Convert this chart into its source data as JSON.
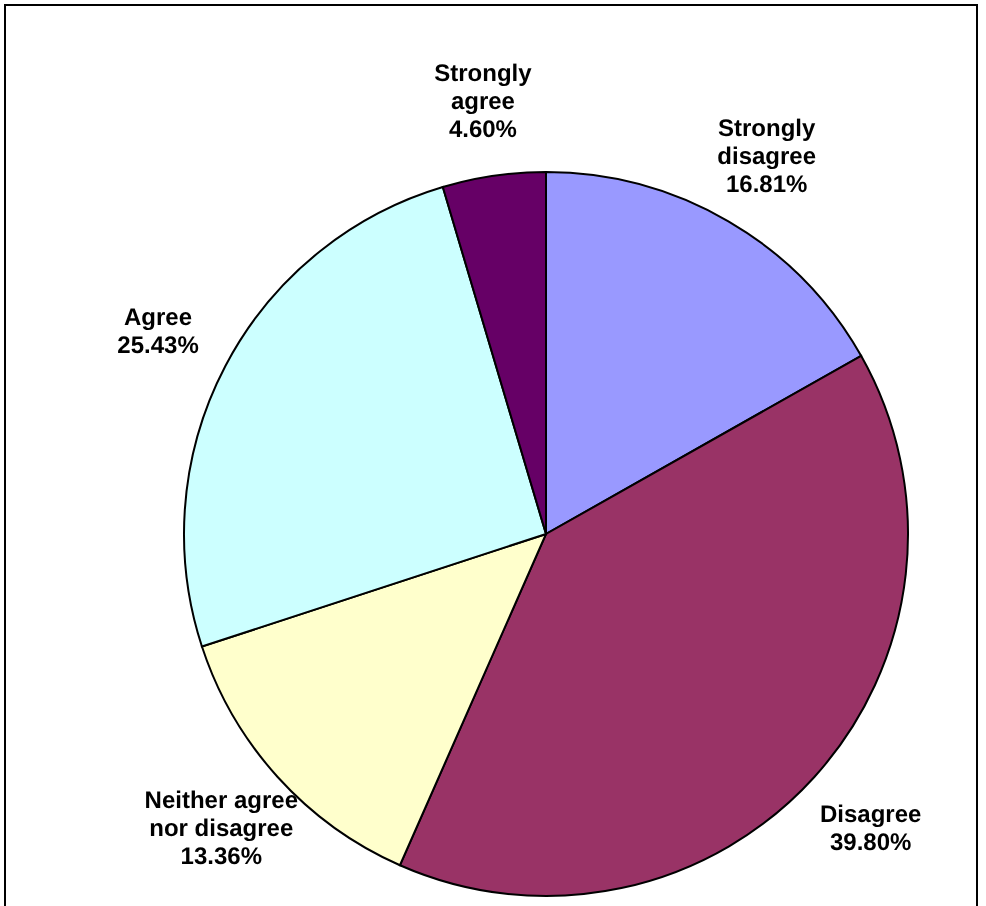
{
  "chart_data": {
    "type": "pie",
    "categories": [
      "Strongly disagree",
      "Disagree",
      "Neither agree nor disagree",
      "Agree",
      "Strongly agree"
    ],
    "values": [
      16.81,
      39.8,
      13.36,
      25.43,
      4.6
    ],
    "value_labels": [
      "16.81%",
      "39.80%",
      "13.36%",
      "25.43%",
      "4.60%"
    ],
    "colors": [
      "#9999ff",
      "#993366",
      "#ffffcc",
      "#ccffff",
      "#660066"
    ],
    "legend": false
  }
}
